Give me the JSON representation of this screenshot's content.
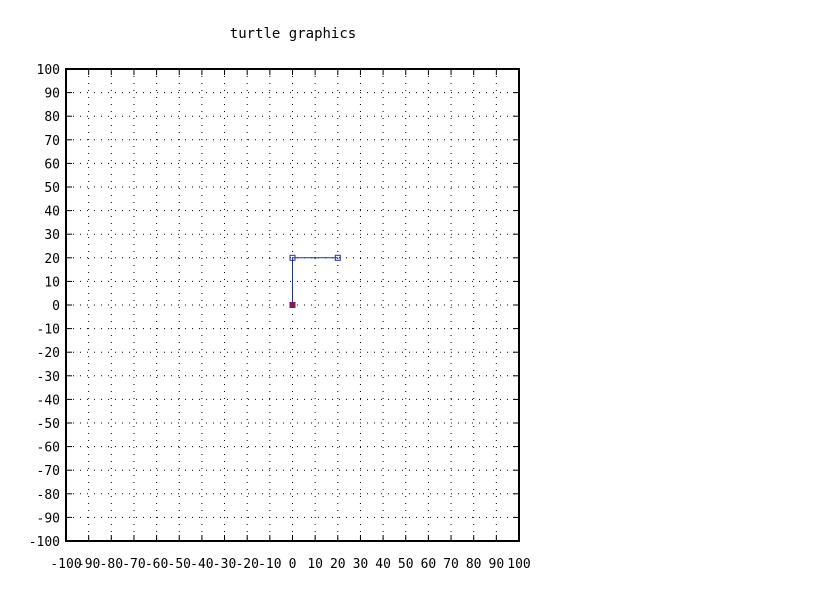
{
  "chart_data": {
    "type": "line",
    "title": "turtle graphics",
    "xlabel": "",
    "ylabel": "",
    "xlim": [
      -100,
      100
    ],
    "ylim": [
      -100,
      100
    ],
    "x_ticks": [
      "-100",
      "-90",
      "-80",
      "-70",
      "-60",
      "-50",
      "-40",
      "-30",
      "-20",
      "-10",
      "0",
      "10",
      "20",
      "30",
      "40",
      "50",
      "60",
      "70",
      "80",
      "90",
      "100"
    ],
    "y_ticks": [
      "-100",
      "-90",
      "-80",
      "-70",
      "-60",
      "-50",
      "-40",
      "-30",
      "-20",
      "-10",
      "0",
      "10",
      "20",
      "30",
      "40",
      "50",
      "60",
      "70",
      "80",
      "90",
      "100"
    ],
    "grid": true,
    "grid_style": "dotted",
    "series": [
      {
        "color": "#1f2fb4",
        "marker": "square",
        "x": [
          0,
          0,
          20
        ],
        "y": [
          0,
          20,
          20
        ]
      }
    ],
    "start_marker": {
      "x": 0,
      "y": 0,
      "color": "#8b1a5a"
    }
  }
}
